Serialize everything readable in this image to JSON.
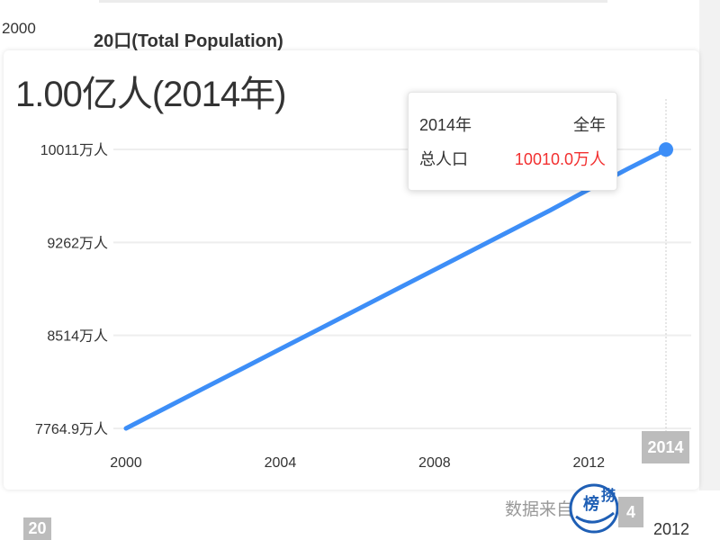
{
  "header": {
    "corner_year": "2000",
    "title": "20口(Total Population)"
  },
  "summary": {
    "value": "1.00亿人(2014年)"
  },
  "tooltip": {
    "year": "2014年",
    "period": "全年",
    "metric": "总人口",
    "value": "10010.0万人"
  },
  "hover_x_label": "2014",
  "footer": {
    "source": "数据来自:",
    "logo_text_1": "榜",
    "logo_text_2": "捞",
    "ghost_left": "20",
    "ghost_right": "4",
    "bottom_year": "2012"
  },
  "colors": {
    "line": "#3d8ef7",
    "grid": "#eeeeee",
    "highlight": "#f23030"
  },
  "chart_data": {
    "type": "line",
    "title": "20口(Total Population)",
    "xlabel": "",
    "ylabel": "",
    "x": [
      2000,
      2001,
      2002,
      2003,
      2004,
      2005,
      2006,
      2007,
      2008,
      2009,
      2010,
      2011,
      2012,
      2013,
      2014
    ],
    "series": [
      {
        "values": [
          7764.9,
          7925,
          8085,
          8244,
          8404,
          8563,
          8723,
          8883,
          9042,
          9202,
          9362,
          9521,
          9689,
          9853,
          10010.0
        ]
      }
    ],
    "y_ticks": [
      7764.9,
      8514,
      9262,
      10011
    ],
    "y_tick_labels": [
      "7764.9万人",
      "8514万人",
      "9262万人",
      "10011万人"
    ],
    "x_ticks": [
      2000,
      2004,
      2008,
      2012
    ],
    "x_tick_labels": [
      "2000",
      "2004",
      "2008",
      "2012"
    ],
    "xlim": [
      2000,
      2014
    ],
    "ylim": [
      7764.9,
      10011
    ],
    "grid": true,
    "legend": "none"
  }
}
